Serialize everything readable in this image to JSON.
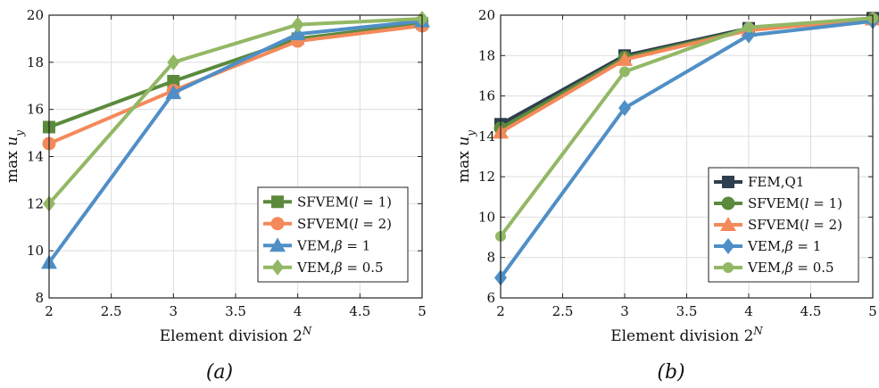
{
  "colors": {
    "sfvem1": "#5b8a3c",
    "sfvem2": "#f4895a",
    "vem1": "#4f8fc6",
    "vem05": "#93b865",
    "fem": "#2e3f4f",
    "grid": "#dddddd",
    "axis": "#222222"
  },
  "chart_data": [
    {
      "type": "line",
      "caption": "(a)",
      "xlabel": "Element division 2^N",
      "ylabel": "max u_y",
      "xlim": [
        2,
        5
      ],
      "ylim": [
        8,
        20
      ],
      "xticks": [
        2,
        2.5,
        3,
        3.5,
        4,
        4.5,
        5
      ],
      "yticks": [
        8,
        10,
        12,
        14,
        16,
        18,
        20
      ],
      "grid": true,
      "legend_position": "bottom-right",
      "x": [
        2,
        3,
        4,
        5
      ],
      "series": [
        {
          "name": "SFVEM(l = 1)",
          "color_key": "sfvem1",
          "marker": "square",
          "values": [
            15.25,
            17.2,
            19.0,
            19.65
          ]
        },
        {
          "name": "SFVEM(l = 2)",
          "color_key": "sfvem2",
          "marker": "circle",
          "values": [
            14.55,
            16.8,
            18.9,
            19.55
          ]
        },
        {
          "name": "VEM,β = 1",
          "color_key": "vem1",
          "marker": "triangle",
          "values": [
            9.5,
            16.7,
            19.2,
            19.75
          ]
        },
        {
          "name": "VEM,β = 0.5",
          "color_key": "vem05",
          "marker": "diamond",
          "values": [
            12.0,
            18.0,
            19.6,
            19.85
          ]
        }
      ]
    },
    {
      "type": "line",
      "caption": "(b)",
      "xlabel": "Element division 2^N",
      "ylabel": "max u_y",
      "xlim": [
        2,
        5
      ],
      "ylim": [
        6,
        20
      ],
      "xticks": [
        2,
        2.5,
        3,
        3.5,
        4,
        4.5,
        5
      ],
      "yticks": [
        6,
        8,
        10,
        12,
        14,
        16,
        18,
        20
      ],
      "grid": true,
      "legend_position": "bottom-right",
      "x": [
        2,
        3,
        4,
        5
      ],
      "series": [
        {
          "name": "FEM,Q1",
          "color_key": "fem",
          "marker": "square",
          "values": [
            14.6,
            18.0,
            19.35,
            19.85
          ]
        },
        {
          "name": "SFVEM(l = 1)",
          "color_key": "sfvem1",
          "marker": "circle",
          "values": [
            14.4,
            17.9,
            19.3,
            19.8
          ]
        },
        {
          "name": "SFVEM(l = 2)",
          "color_key": "sfvem2",
          "marker": "triangle",
          "values": [
            14.2,
            17.8,
            19.25,
            19.8
          ]
        },
        {
          "name": "VEM,β = 1",
          "color_key": "vem1",
          "marker": "diamond",
          "values": [
            7.0,
            15.4,
            19.0,
            19.7
          ]
        },
        {
          "name": "VEM,β = 0.5",
          "color_key": "vem05",
          "marker": "circle-small",
          "values": [
            9.05,
            17.2,
            19.4,
            19.85
          ]
        }
      ]
    }
  ]
}
